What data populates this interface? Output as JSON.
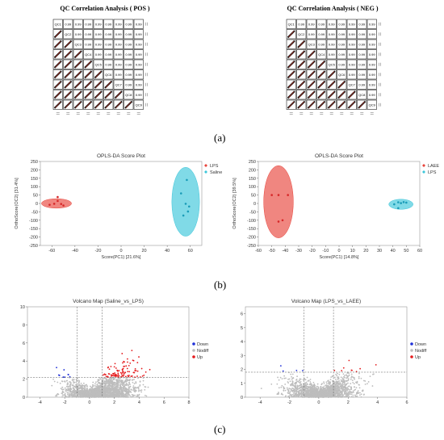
{
  "panel_labels": [
    "(a)",
    "(b)",
    "(c)"
  ],
  "colors": {
    "lps_red": "#e8453c",
    "saline_cyan": "#3cc6da",
    "laee_red": "#e8453c",
    "down_blue": "#1f2fd8",
    "nodiff_gray": "#bdbdbd",
    "up_red": "#e41a1c"
  },
  "chart_data": [
    {
      "type": "heatmap",
      "title": "QC Correlation Analysis ( POS )",
      "labels": [
        "QC1",
        "QC2",
        "QC3",
        "QC4",
        "QC5",
        "QC6",
        "QC7",
        "QC8",
        "QC9"
      ],
      "cell_value": "0.99"
    },
    {
      "type": "heatmap",
      "title": "QC Correlation Analysis ( NEG )",
      "labels": [
        "QC1",
        "QC2",
        "QC3",
        "QC4",
        "QC5",
        "QC6",
        "QC7",
        "QC8",
        "QC9"
      ],
      "cell_value": "0.99"
    },
    {
      "type": "scatter",
      "title": "OPLS-DA Score Plot",
      "xlabel": "Score(PC1) [21.6%]",
      "ylabel": "OrthoScore(OC2) [31.4%]",
      "xlim": [
        -70,
        70
      ],
      "ylim": [
        -250,
        250
      ],
      "xticks": [
        -60,
        -40,
        -20,
        0,
        20,
        40,
        60
      ],
      "yticks": [
        -250,
        -200,
        -150,
        -100,
        -50,
        0,
        50,
        100,
        150,
        200,
        250
      ],
      "legend_position": "top-right",
      "series": [
        {
          "name": "LPS",
          "color": "#e8453c",
          "points": [
            [
              -62,
              -8
            ],
            [
              -58,
              -2
            ],
            [
              -55,
              38
            ],
            [
              -55,
              15
            ],
            [
              -52,
              -3
            ],
            [
              -50,
              -12
            ]
          ],
          "ellipse": {
            "cx": -56,
            "cy": 0,
            "rx": 13,
            "ry": 28
          }
        },
        {
          "name": "Saline",
          "color": "#3cc6da",
          "points": [
            [
              52,
              60
            ],
            [
              57,
              140
            ],
            [
              56,
              -2
            ],
            [
              59,
              -18
            ],
            [
              58,
              -48
            ],
            [
              54,
              -72
            ]
          ],
          "ellipse": {
            "cx": 56,
            "cy": 10,
            "rx": 12,
            "ry": 205
          }
        }
      ]
    },
    {
      "type": "scatter",
      "title": "OPLS-DA Score Plot",
      "xlabel": "Score(PC1) [14.8%]",
      "ylabel": "OrthoScore(OC2) [39.5%]",
      "xlim": [
        -60,
        60
      ],
      "ylim": [
        -250,
        250
      ],
      "xticks": [
        -60,
        -50,
        -40,
        -30,
        -20,
        -10,
        0,
        10,
        20,
        30,
        40,
        50,
        60
      ],
      "yticks": [
        -250,
        -200,
        -150,
        -100,
        -50,
        0,
        50,
        100,
        150,
        200,
        250
      ],
      "legend_position": "top-right",
      "series": [
        {
          "name": "LAEE",
          "color": "#e8453c",
          "points": [
            [
              -50,
              50
            ],
            [
              -45,
              50
            ],
            [
              -38,
              50
            ],
            [
              -45,
              -108
            ],
            [
              -42,
              -100
            ]
          ],
          "ellipse": {
            "cx": -45,
            "cy": 10,
            "rx": 11,
            "ry": 215
          }
        },
        {
          "name": "LPS",
          "color": "#3cc6da",
          "points": [
            [
              41,
              -5
            ],
            [
              44,
              7
            ],
            [
              46,
              2
            ],
            [
              48,
              8
            ],
            [
              44,
              -28
            ],
            [
              50,
              5
            ]
          ],
          "ellipse": {
            "cx": 46,
            "cy": -5,
            "rx": 9,
            "ry": 30
          }
        }
      ]
    },
    {
      "type": "scatter",
      "title": "Volcano Map (Saline_vs_LPS)",
      "xlim": [
        -5,
        8
      ],
      "ylim": [
        0,
        10
      ],
      "xticks": [
        -4,
        -2,
        0,
        2,
        4,
        6,
        8
      ],
      "yticks": [
        0,
        2,
        4,
        6,
        8,
        10
      ],
      "thresholds": {
        "x": [
          -1,
          1
        ],
        "y": 2.2
      },
      "legend_position": "right",
      "legend": [
        "Down",
        "Nodiff",
        "Up"
      ]
    },
    {
      "type": "scatter",
      "title": "Volcano Map (LPS_vs_LAEE)",
      "xlim": [
        -5,
        6
      ],
      "ylim": [
        0,
        6.5
      ],
      "xticks": [
        -4,
        -2,
        0,
        2,
        4,
        6
      ],
      "yticks": [
        0,
        1,
        2,
        3,
        4,
        5,
        6
      ],
      "thresholds": {
        "x": [
          -1,
          1
        ],
        "y": 1.8
      },
      "legend_position": "right",
      "legend": [
        "Down",
        "Nodiff",
        "Up"
      ]
    }
  ]
}
